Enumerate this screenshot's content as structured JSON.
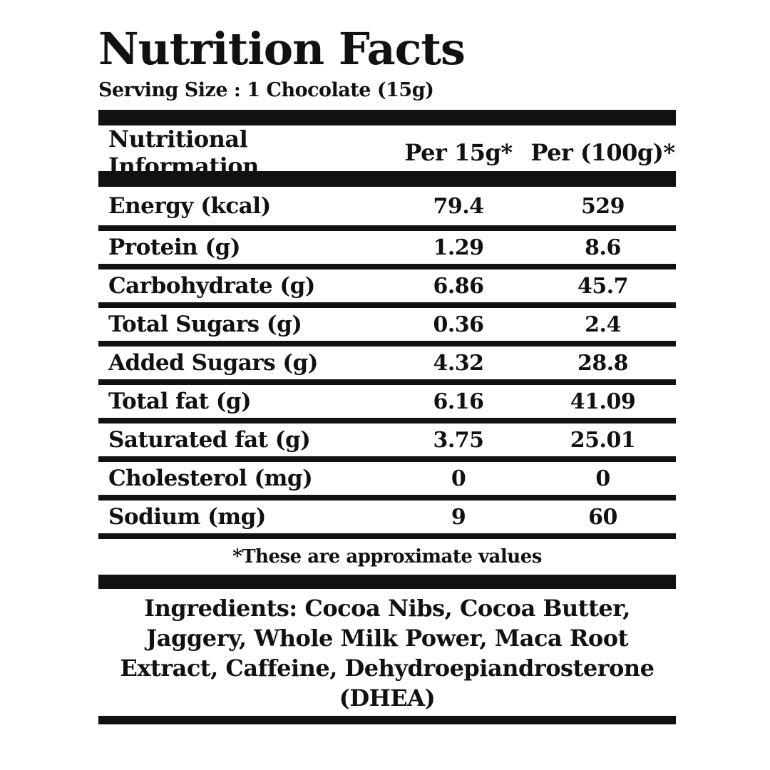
{
  "label": {
    "title": "Nutrition Facts",
    "serving_size": "Serving Size : 1 Chocolate (15g)",
    "columns": [
      "Nutritional Information",
      "Per 15g*",
      "Per (100g)*"
    ],
    "rows": [
      {
        "name": "Energy (kcal)",
        "per_15g": "79.4",
        "per_100g": "529"
      },
      {
        "name": "Protein (g)",
        "per_15g": "1.29",
        "per_100g": "8.6"
      },
      {
        "name": "Carbohydrate (g)",
        "per_15g": "6.86",
        "per_100g": "45.7"
      },
      {
        "name": "Total Sugars (g)",
        "per_15g": "0.36",
        "per_100g": "2.4"
      },
      {
        "name": "Added Sugars (g)",
        "per_15g": "4.32",
        "per_100g": "28.8"
      },
      {
        "name": "Total fat (g)",
        "per_15g": "6.16",
        "per_100g": "41.09"
      },
      {
        "name": "Saturated fat (g)",
        "per_15g": "3.75",
        "per_100g": "25.01"
      },
      {
        "name": "Cholesterol (mg)",
        "per_15g": "0",
        "per_100g": "0"
      },
      {
        "name": "Sodium (mg)",
        "per_15g": "9",
        "per_100g": "60"
      }
    ],
    "footnote": "*These are approximate values",
    "ingredients": "Ingredients: Cocoa Nibs, Cocoa Butter, Jaggery, Whole Milk Power, Maca Root Extract, Caffeine, Dehydroepiandrosterone (DHEA)",
    "colors": {
      "text": "#111111",
      "background": "#ffffff"
    }
  }
}
